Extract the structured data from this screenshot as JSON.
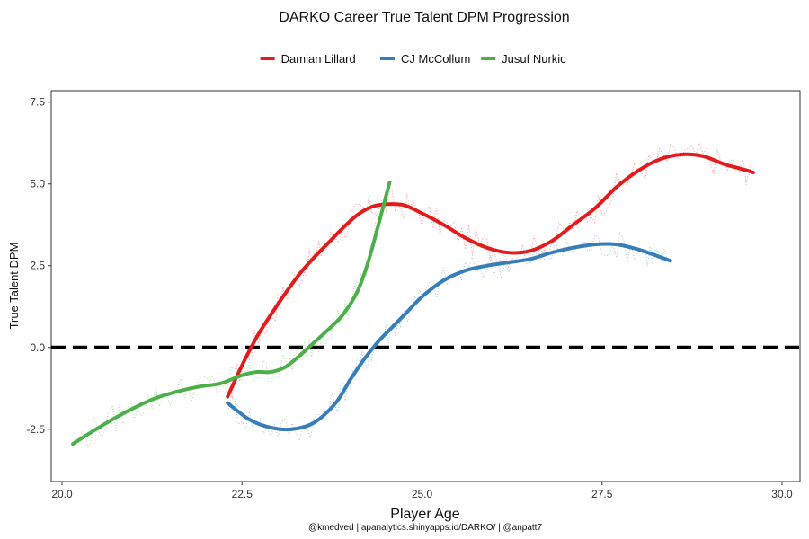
{
  "chart_data": {
    "type": "line",
    "title": "DARKO Career True Talent DPM Progression",
    "xlabel": "Player Age",
    "ylabel": "True Talent DPM",
    "caption": "@kmedved | apanalytics.shinyapps.io/DARKO/ | @anpatt7",
    "xlim": [
      19.85,
      30.25
    ],
    "ylim": [
      -4.1,
      7.85
    ],
    "x_ticks": [
      20.0,
      22.5,
      25.0,
      27.5,
      30.0
    ],
    "x_tick_labels": [
      "20.0",
      "22.5",
      "25.0",
      "27.5",
      "30.0"
    ],
    "y_ticks": [
      -2.5,
      0.0,
      2.5,
      5.0,
      7.5
    ],
    "y_tick_labels": [
      "-2.5",
      "0.0",
      "2.5",
      "5.0",
      "7.5"
    ],
    "grid": false,
    "legend_position": "top",
    "reference_line": {
      "y": 0,
      "style": "dashed",
      "color": "#000000"
    },
    "series": [
      {
        "name": "Damian Lillard",
        "color": "#e41a1c",
        "x": [
          22.3,
          22.5,
          22.7,
          22.9,
          23.1,
          23.3,
          23.5,
          23.7,
          23.9,
          24.1,
          24.3,
          24.5,
          24.75,
          25.0,
          25.3,
          25.6,
          25.9,
          26.2,
          26.5,
          26.8,
          27.1,
          27.4,
          27.7,
          28.0,
          28.3,
          28.6,
          28.9,
          29.2,
          29.45,
          29.6
        ],
        "y": [
          -1.5,
          -0.55,
          0.3,
          1.0,
          1.65,
          2.25,
          2.75,
          3.2,
          3.65,
          4.05,
          4.3,
          4.38,
          4.35,
          4.1,
          3.75,
          3.35,
          3.05,
          2.9,
          2.95,
          3.25,
          3.75,
          4.25,
          4.9,
          5.4,
          5.75,
          5.9,
          5.85,
          5.6,
          5.45,
          5.35
        ]
      },
      {
        "name": "CJ McCollum",
        "color": "#377eb8",
        "x": [
          22.3,
          22.6,
          22.9,
          23.2,
          23.5,
          23.8,
          24.0,
          24.2,
          24.4,
          24.6,
          24.8,
          25.0,
          25.3,
          25.6,
          25.9,
          26.2,
          26.5,
          26.8,
          27.1,
          27.4,
          27.7,
          28.0,
          28.2,
          28.45
        ],
        "y": [
          -1.7,
          -2.2,
          -2.45,
          -2.5,
          -2.3,
          -1.7,
          -1.0,
          -0.35,
          0.2,
          0.65,
          1.1,
          1.55,
          2.05,
          2.35,
          2.5,
          2.6,
          2.7,
          2.9,
          3.05,
          3.15,
          3.15,
          3.0,
          2.85,
          2.65
        ]
      },
      {
        "name": "Jusuf Nurkic",
        "color": "#4daf4a",
        "x": [
          20.15,
          20.4,
          20.7,
          21.0,
          21.3,
          21.6,
          21.9,
          22.2,
          22.5,
          22.7,
          22.9,
          23.1,
          23.3,
          23.5,
          23.7,
          23.9,
          24.1,
          24.25,
          24.4,
          24.55
        ],
        "y": [
          -2.95,
          -2.6,
          -2.2,
          -1.85,
          -1.55,
          -1.35,
          -1.2,
          -1.1,
          -0.85,
          -0.75,
          -0.75,
          -0.6,
          -0.25,
          0.15,
          0.55,
          1.0,
          1.7,
          2.6,
          3.8,
          5.05
        ]
      }
    ]
  }
}
